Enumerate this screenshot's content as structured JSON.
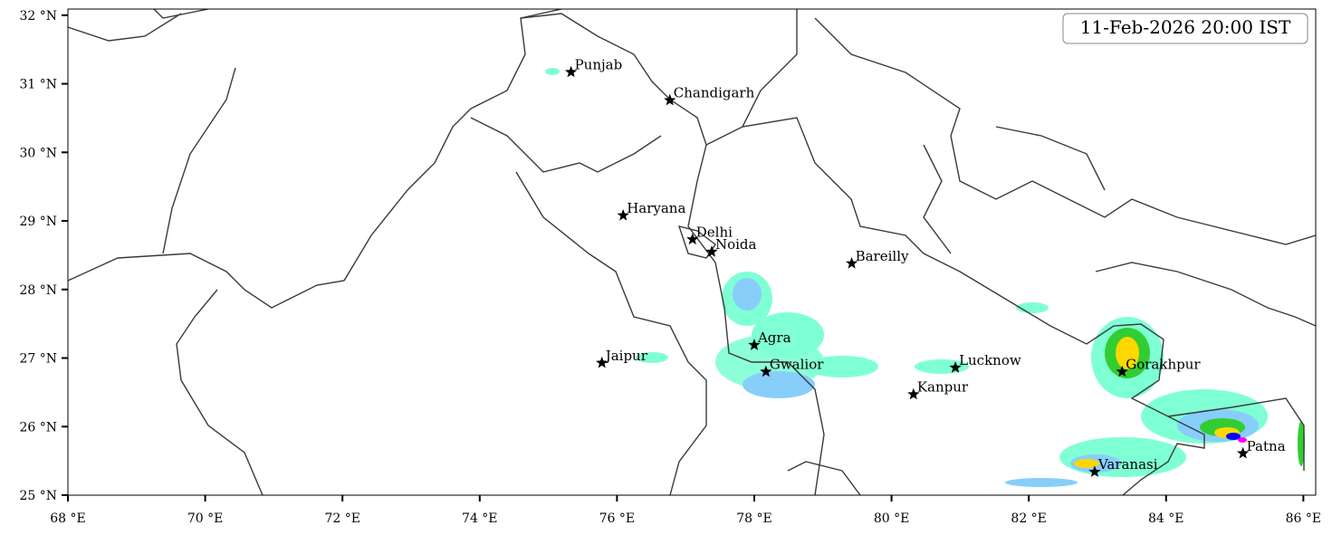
{
  "map": {
    "title": "11-Feb-2026 20:00 IST",
    "xlim": [
      68,
      86.18
    ],
    "ylim": [
      25,
      32.09
    ],
    "xticks": [
      {
        "value": 68,
        "label": "68 °E"
      },
      {
        "value": 70,
        "label": "70 °E"
      },
      {
        "value": 72,
        "label": "72 °E"
      },
      {
        "value": 74,
        "label": "74 °E"
      },
      {
        "value": 76,
        "label": "76 °E"
      },
      {
        "value": 78,
        "label": "78 °E"
      },
      {
        "value": 80,
        "label": "80 °E"
      },
      {
        "value": 82,
        "label": "82 °E"
      },
      {
        "value": 84,
        "label": "84 °E"
      },
      {
        "value": 86,
        "label": "86 °E"
      }
    ],
    "yticks": [
      {
        "value": 25,
        "label": "25 °N"
      },
      {
        "value": 26,
        "label": "26 °N"
      },
      {
        "value": 27,
        "label": "27 °N"
      },
      {
        "value": 28,
        "label": "28 °N"
      },
      {
        "value": 29,
        "label": "29 °N"
      },
      {
        "value": 30,
        "label": "30 °N"
      },
      {
        "value": 31,
        "label": "31 °N"
      },
      {
        "value": 32,
        "label": "32 °N"
      }
    ],
    "cities": [
      {
        "name": "Punjab",
        "lon": 75.33,
        "lat": 31.17
      },
      {
        "name": "Chandigarh",
        "lon": 76.77,
        "lat": 30.76
      },
      {
        "name": "Haryana",
        "lon": 76.09,
        "lat": 29.08
      },
      {
        "name": "Delhi",
        "lon": 77.1,
        "lat": 28.73
      },
      {
        "name": "Noida",
        "lon": 77.38,
        "lat": 28.55
      },
      {
        "name": "Bareilly",
        "lon": 79.42,
        "lat": 28.38
      },
      {
        "name": "Agra",
        "lon": 78.0,
        "lat": 27.19
      },
      {
        "name": "Jaipur",
        "lon": 75.78,
        "lat": 26.93
      },
      {
        "name": "Gwalior",
        "lon": 78.17,
        "lat": 26.8
      },
      {
        "name": "Lucknow",
        "lon": 80.93,
        "lat": 26.86
      },
      {
        "name": "Kanpur",
        "lon": 80.32,
        "lat": 26.47
      },
      {
        "name": "Gorakhpur",
        "lon": 83.36,
        "lat": 26.8
      },
      {
        "name": "Varanasi",
        "lon": 82.96,
        "lat": 25.34
      },
      {
        "name": "Patna",
        "lon": 85.12,
        "lat": 25.61
      }
    ]
  }
}
